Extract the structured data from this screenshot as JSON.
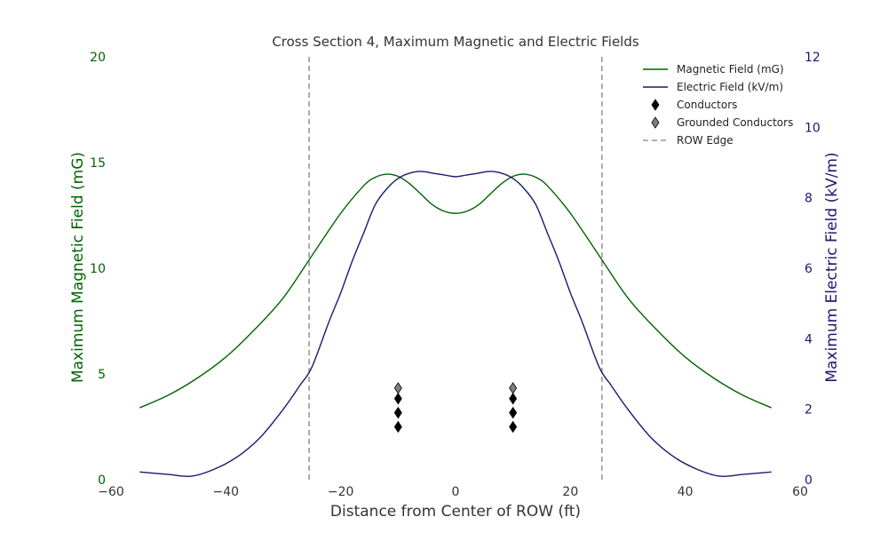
{
  "chart_data": {
    "type": "line",
    "title": "Cross Section 4, Maximum Magnetic and Electric Fields",
    "xlabel": "Distance from Center of ROW (ft)",
    "ylabel_left": "Maximum Magnetic Field (mG)",
    "ylabel_right": "Maximum Electric Field (kV/m)",
    "xlim": [
      -60,
      60
    ],
    "ylim_left": [
      0,
      20
    ],
    "ylim_right": [
      0,
      12
    ],
    "xticks": [
      -60,
      -40,
      -20,
      0,
      20,
      40,
      60
    ],
    "xtick_labels": [
      "−60",
      "−40",
      "−20",
      "0",
      "20",
      "40",
      "60"
    ],
    "yticks_left": [
      0,
      5,
      10,
      15,
      20
    ],
    "yticks_right": [
      0,
      2,
      4,
      6,
      8,
      10,
      12
    ],
    "grid": false,
    "legend_position": "top-right",
    "colors": {
      "magnetic": "#006400",
      "electric": "#191970",
      "conductor": "#000000",
      "grounded": "#808080",
      "row_edge": "#808080",
      "title": "#333333",
      "x_axis_text": "#333333"
    },
    "series": [
      {
        "name": "Magnetic Field (mG)",
        "axis": "left",
        "x": [
          -55,
          -50,
          -45,
          -40,
          -35,
          -30,
          -25,
          -20,
          -16,
          -14,
          -12,
          -10,
          -8,
          -6,
          -4,
          -2,
          0,
          2,
          4,
          6,
          8,
          10,
          12,
          14,
          16,
          20,
          25,
          30,
          35,
          40,
          45,
          50,
          55
        ],
        "y": [
          3.4,
          4.0,
          4.8,
          5.8,
          7.1,
          8.6,
          10.6,
          12.6,
          13.9,
          14.3,
          14.45,
          14.35,
          14.0,
          13.5,
          13.0,
          12.7,
          12.6,
          12.7,
          13.0,
          13.5,
          14.0,
          14.35,
          14.45,
          14.3,
          13.9,
          12.6,
          10.6,
          8.6,
          7.1,
          5.8,
          4.8,
          4.0,
          3.4
        ]
      },
      {
        "name": "Electric Field (kV/m)",
        "axis": "right",
        "x": [
          -55,
          -50,
          -46,
          -42,
          -38,
          -34,
          -30,
          -27,
          -25,
          -22,
          -20,
          -18,
          -16,
          -14,
          -12,
          -10,
          -8,
          -6,
          -4,
          -2,
          0,
          2,
          4,
          6,
          8,
          10,
          12,
          14,
          16,
          18,
          20,
          22,
          25,
          27,
          30,
          34,
          38,
          42,
          46,
          50,
          55
        ],
        "y": [
          0.22,
          0.15,
          0.1,
          0.3,
          0.65,
          1.2,
          2.0,
          2.7,
          3.2,
          4.5,
          5.3,
          6.2,
          7.0,
          7.8,
          8.25,
          8.55,
          8.7,
          8.75,
          8.7,
          8.65,
          8.6,
          8.65,
          8.7,
          8.75,
          8.7,
          8.55,
          8.25,
          7.8,
          7.0,
          6.2,
          5.3,
          4.5,
          3.2,
          2.7,
          2.0,
          1.2,
          0.65,
          0.3,
          0.1,
          0.15,
          0.22
        ]
      }
    ],
    "conductors": {
      "name": "Conductors",
      "axis": "right",
      "x": [
        -10,
        -10,
        -10,
        10,
        10,
        10
      ],
      "y": [
        2.3,
        1.9,
        1.5,
        2.3,
        1.9,
        1.5
      ]
    },
    "grounded_conductors": {
      "name": "Grounded Conductors",
      "axis": "right",
      "x": [
        -10,
        10
      ],
      "y": [
        2.6,
        2.6
      ]
    },
    "row_edges": {
      "name": "ROW Edge",
      "x": [
        -25.5,
        25.5
      ]
    },
    "legend": [
      {
        "label": "Magnetic Field (mG)",
        "kind": "line",
        "color_key": "magnetic"
      },
      {
        "label": "Electric Field (kV/m)",
        "kind": "line",
        "color_key": "electric"
      },
      {
        "label": "Conductors",
        "kind": "diamond",
        "color_key": "conductor"
      },
      {
        "label": "Grounded Conductors",
        "kind": "diamond",
        "color_key": "grounded"
      },
      {
        "label": "ROW Edge",
        "kind": "dashed",
        "color_key": "row_edge"
      }
    ]
  }
}
